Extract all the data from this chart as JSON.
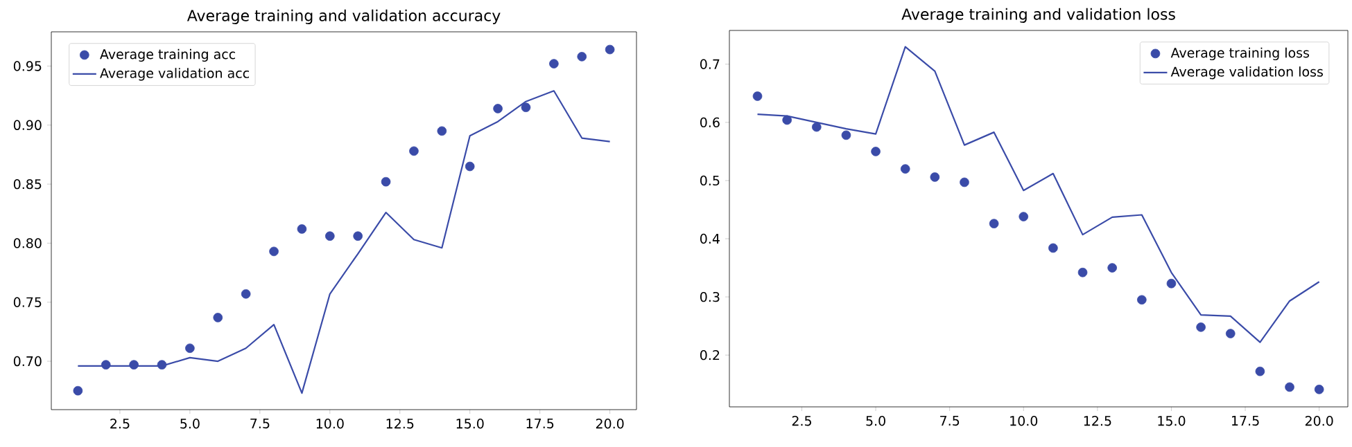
{
  "chart_data": [
    {
      "type": "line",
      "title": "Average training and validation accuracy",
      "x": [
        1,
        2,
        3,
        4,
        5,
        6,
        7,
        8,
        9,
        10,
        11,
        12,
        13,
        14,
        15,
        16,
        17,
        18,
        19,
        20
      ],
      "series": [
        {
          "name": "Average training acc",
          "type": "scatter",
          "marker": "circle",
          "color": "#3a4ba8",
          "values": [
            0.675,
            0.697,
            0.697,
            0.697,
            0.711,
            0.737,
            0.757,
            0.793,
            0.812,
            0.806,
            0.806,
            0.852,
            0.878,
            0.895,
            0.865,
            0.914,
            0.915,
            0.952,
            0.958,
            0.964
          ]
        },
        {
          "name": "Average validation acc",
          "marker": "none",
          "line_style": "solid",
          "color": "#3a4ba8",
          "values": [
            0.696,
            0.696,
            0.696,
            0.696,
            0.703,
            0.7,
            0.711,
            0.731,
            0.673,
            0.757,
            0.791,
            0.826,
            0.803,
            0.796,
            0.891,
            0.903,
            0.92,
            0.929,
            0.889,
            0.886
          ]
        }
      ],
      "xlim": [
        0.05,
        20.95
      ],
      "ylim": [
        0.659,
        0.979
      ],
      "xticks": [
        {
          "value": 2.5,
          "label": "2.5"
        },
        {
          "value": 5,
          "label": "5.0"
        },
        {
          "value": 7.5,
          "label": "7.5"
        },
        {
          "value": 10,
          "label": "10.0"
        },
        {
          "value": 12.5,
          "label": "12.5"
        },
        {
          "value": 15,
          "label": "15.0"
        },
        {
          "value": 17.5,
          "label": "17.5"
        },
        {
          "value": 20,
          "label": "20.0"
        }
      ],
      "yticks": [
        {
          "value": 0.7,
          "label": "0.70"
        },
        {
          "value": 0.75,
          "label": "0.75"
        },
        {
          "value": 0.8,
          "label": "0.80"
        },
        {
          "value": 0.85,
          "label": "0.85"
        },
        {
          "value": 0.9,
          "label": "0.90"
        },
        {
          "value": 0.95,
          "label": "0.95"
        }
      ],
      "legend": "top left"
    },
    {
      "type": "line",
      "title": "Average training and validation loss",
      "x": [
        1,
        2,
        3,
        4,
        5,
        6,
        7,
        8,
        9,
        10,
        11,
        12,
        13,
        14,
        15,
        16,
        17,
        18,
        19,
        20
      ],
      "series": [
        {
          "name": "Average training loss",
          "type": "scatter",
          "marker": "circle",
          "color": "#3a4ba8",
          "values": [
            0.645,
            0.604,
            0.592,
            0.578,
            0.55,
            0.52,
            0.506,
            0.497,
            0.426,
            0.438,
            0.384,
            0.342,
            0.35,
            0.295,
            0.323,
            0.248,
            0.237,
            0.172,
            0.145,
            0.141
          ]
        },
        {
          "name": "Average validation loss",
          "marker": "none",
          "line_style": "solid",
          "color": "#3a4ba8",
          "values": [
            0.614,
            0.611,
            0.6,
            0.589,
            0.58,
            0.73,
            0.688,
            0.561,
            0.583,
            0.483,
            0.512,
            0.407,
            0.437,
            0.441,
            0.342,
            0.269,
            0.267,
            0.222,
            0.293,
            0.326
          ]
        }
      ],
      "xlim": [
        0.05,
        20.97
      ],
      "ylim": [
        0.111,
        0.758
      ],
      "xticks": [
        {
          "value": 2.5,
          "label": "2.5"
        },
        {
          "value": 5,
          "label": "5.0"
        },
        {
          "value": 7.5,
          "label": "7.5"
        },
        {
          "value": 10,
          "label": "10.0"
        },
        {
          "value": 12.5,
          "label": "12.5"
        },
        {
          "value": 15,
          "label": "15.0"
        },
        {
          "value": 17.5,
          "label": "17.5"
        },
        {
          "value": 20,
          "label": "20.0"
        }
      ],
      "yticks": [
        {
          "value": 0.2,
          "label": "0.2"
        },
        {
          "value": 0.3,
          "label": "0.3"
        },
        {
          "value": 0.4,
          "label": "0.4"
        },
        {
          "value": 0.5,
          "label": "0.5"
        },
        {
          "value": 0.6,
          "label": "0.6"
        },
        {
          "value": 0.7,
          "label": "0.7"
        }
      ],
      "legend": "top right"
    }
  ]
}
